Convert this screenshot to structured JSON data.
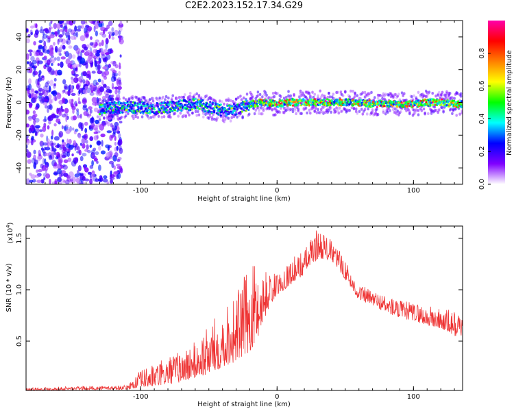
{
  "title": "C2E2.2023.152.17.34.G29",
  "chart_data": [
    {
      "type": "heatmap",
      "xlabel": "Height of straight line (km)",
      "ylabel": "Frequency (Hz)",
      "xlim": [
        -184,
        136
      ],
      "ylim": [
        -50,
        50
      ],
      "xticks": [
        -100,
        0,
        100
      ],
      "yticks": [
        -40,
        -20,
        0,
        20,
        40
      ],
      "ridge": {
        "x": [
          -130,
          -120,
          -110,
          -100,
          -90,
          -80,
          -70,
          -60,
          -50,
          -40,
          -30,
          -20,
          -10,
          0,
          10,
          20,
          30,
          40,
          50,
          60,
          70,
          80,
          90,
          100,
          110,
          120,
          130
        ],
        "freq": [
          -4,
          -3,
          -3,
          -3,
          -4,
          -3,
          -2,
          -1,
          -3,
          -5,
          -4,
          -1,
          0,
          -1,
          0,
          0,
          0,
          0,
          0,
          0,
          -1,
          -1,
          -1,
          -1,
          0,
          0,
          -1
        ]
      },
      "colorbar": {
        "label": "Normalized spectral amplitude",
        "range": [
          0,
          1
        ],
        "ticks": [
          "0.0",
          "0.2",
          "0.4",
          "0.6",
          "0.8"
        ],
        "colors": [
          "#ffffff",
          "#8000ff",
          "#0000ff",
          "#00ffff",
          "#00ff00",
          "#ffff00",
          "#ff8000",
          "#ff0000",
          "#ff00aa"
        ]
      }
    },
    {
      "type": "line",
      "xlabel": "Height of straight line (km)",
      "ylabel": "SNR (10 * v/v)",
      "yscale_label": "(x10",
      "yscale_exp": "4",
      "xlim": [
        -184,
        136
      ],
      "ylim": [
        0.02,
        1.62
      ],
      "xticks": [
        -100,
        0,
        100
      ],
      "yticks": [
        0.5,
        1.0,
        1.5
      ],
      "ytick_labels": [
        "0.5",
        "1.0",
        "1.5"
      ],
      "series": [
        {
          "color": "#ee3333",
          "envelope_x": [
            -184,
            -110,
            -100,
            -90,
            -80,
            -70,
            -60,
            -50,
            -40,
            -30,
            -20,
            -15,
            -10,
            -5,
            0,
            10,
            20,
            25,
            30,
            35,
            40,
            45,
            50,
            55,
            60,
            70,
            80,
            90,
            100,
            110,
            120,
            130,
            136
          ],
          "envelope_low": [
            0.02,
            0.03,
            0.05,
            0.06,
            0.08,
            0.1,
            0.14,
            0.18,
            0.25,
            0.3,
            0.4,
            0.5,
            0.7,
            0.85,
            0.95,
            1.05,
            1.15,
            1.25,
            1.3,
            1.3,
            1.28,
            1.2,
            1.1,
            1.0,
            0.9,
            0.85,
            0.78,
            0.72,
            0.7,
            0.65,
            0.62,
            0.55,
            0.55
          ],
          "envelope_high": [
            0.05,
            0.07,
            0.22,
            0.28,
            0.35,
            0.42,
            0.5,
            0.65,
            0.85,
            1.0,
            1.22,
            1.3,
            1.2,
            1.18,
            1.15,
            1.3,
            1.4,
            1.5,
            1.62,
            1.55,
            1.48,
            1.4,
            1.3,
            1.15,
            1.05,
            1.0,
            0.95,
            0.9,
            0.88,
            0.85,
            0.82,
            0.8,
            0.76
          ]
        }
      ]
    }
  ]
}
